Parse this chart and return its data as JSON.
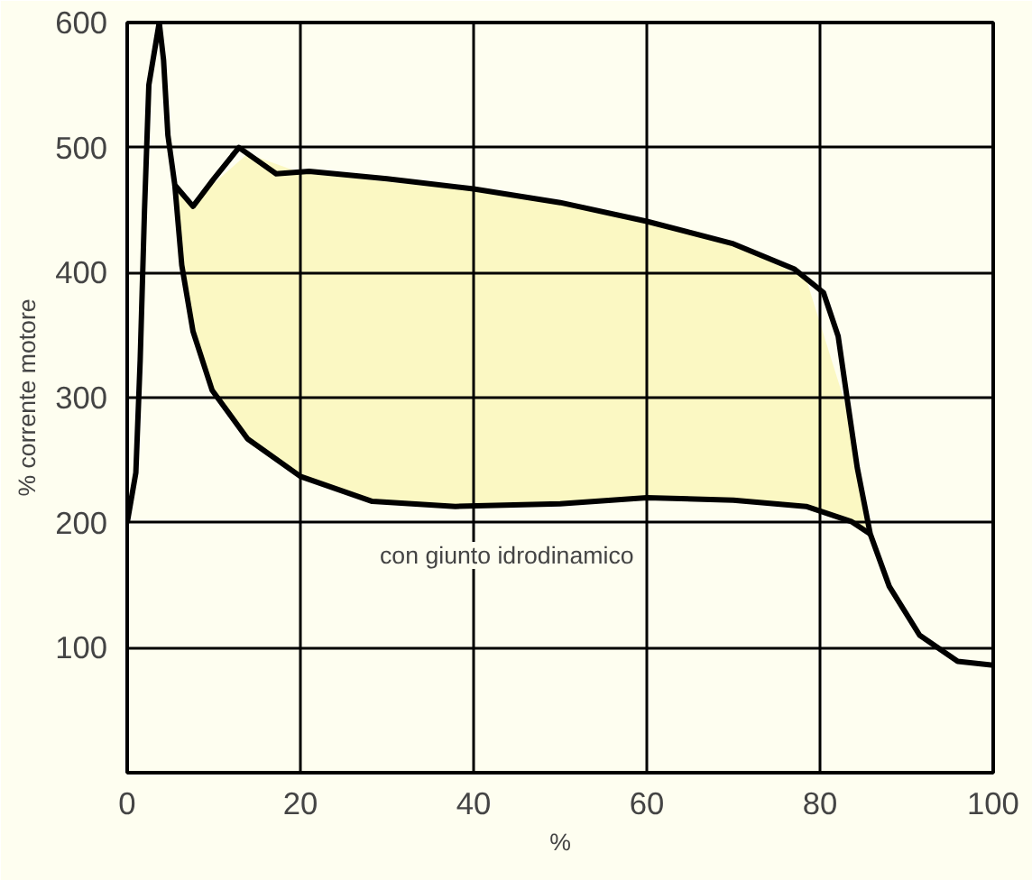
{
  "chart_data": {
    "type": "line",
    "xlabel": "%",
    "ylabel": "% corrente motore",
    "xlim": [
      0,
      100
    ],
    "ylim": [
      0,
      600
    ],
    "xticks": [
      0,
      20,
      40,
      60,
      80,
      100
    ],
    "yticks": [
      100,
      200,
      300,
      400,
      500,
      600
    ],
    "grid": true,
    "line_style": "solid",
    "series": [
      {
        "color": "#000000",
        "x": [
          0,
          1,
          1.5,
          2,
          2.5,
          3.7,
          4.2,
          4.7,
          5.5,
          7.6,
          10,
          12.9,
          17.2,
          21,
          30,
          40,
          50,
          60.0,
          70,
          77,
          80.4,
          82.1,
          83.2,
          84.3,
          85.8,
          88,
          91.5,
          95.9,
          100
        ],
        "values": [
          200,
          240,
          330,
          450,
          550,
          600,
          570,
          510,
          470,
          453,
          475,
          500,
          479,
          481,
          475,
          467,
          456,
          441,
          423,
          403,
          384,
          349,
          296,
          244,
          191,
          149,
          110,
          89,
          86
        ]
      },
      {
        "color": "#000000",
        "x": [
          5.5,
          6.3,
          7.6,
          9.8,
          13.9,
          20,
          28.3,
          37.9,
          50,
          60,
          70,
          78.4,
          83.6,
          85.8
        ],
        "values": [
          470,
          406,
          353,
          306,
          267,
          237,
          217,
          213,
          215,
          220,
          218,
          213,
          201,
          191
        ],
        "upper": [
          470,
          460,
          453,
          470,
          495,
          480,
          474,
          467,
          456,
          441,
          423,
          395,
          280,
          191
        ],
        "lower": [
          470,
          406,
          353,
          306,
          267,
          237,
          217,
          213,
          215,
          220,
          218,
          213,
          201,
          191
        ]
      }
    ],
    "annotations": [
      "con giunto idrodinamico"
    ]
  }
}
